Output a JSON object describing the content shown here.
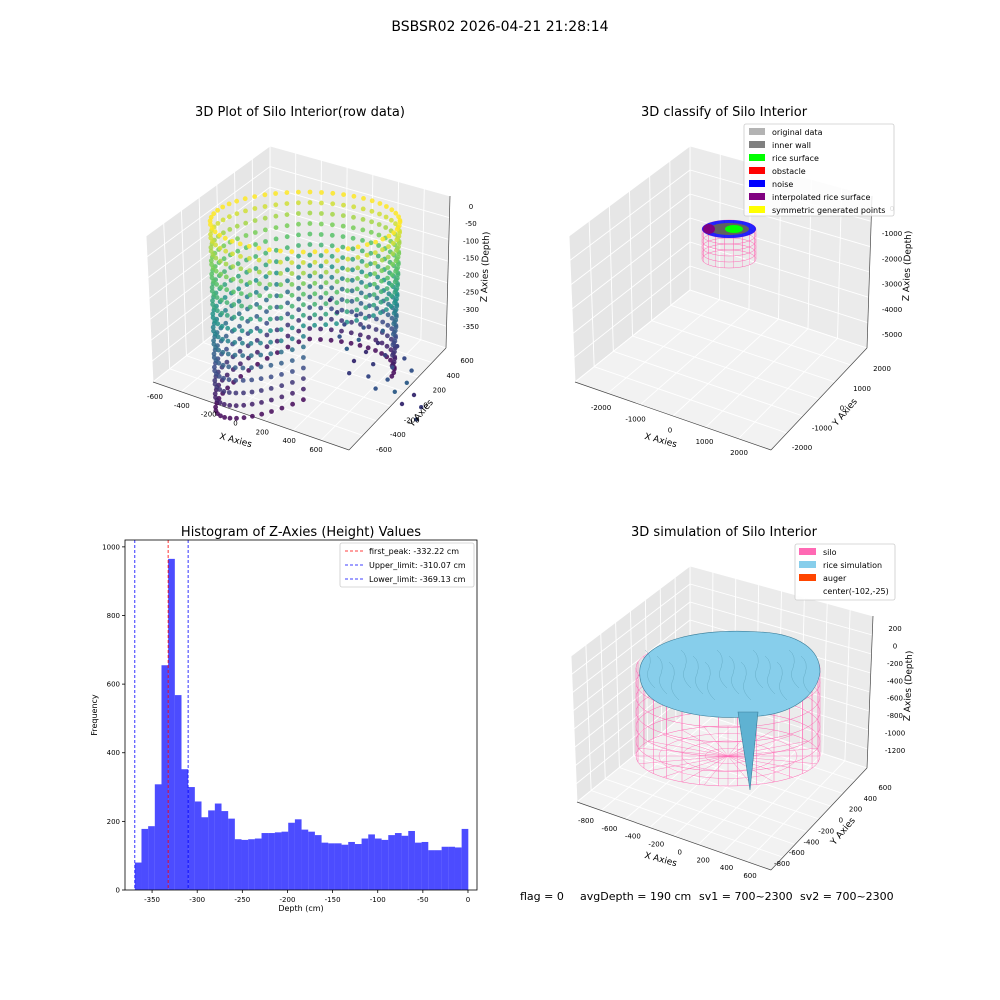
{
  "suptitle": "BSBSR02 2026-04-21 21:28:14",
  "status_line": {
    "flag": "flag = 0",
    "avg": "avgDepth = 190 cm",
    "sv1": "sv1 = 700~2300",
    "sv2": "sv2 = 700~2300"
  },
  "chart_data": [
    {
      "type": "scatter",
      "title": "3D Plot of Silo Interior(row data)",
      "xlabel": "X Axies",
      "ylabel": "Y Axies",
      "zlabel": "Z Axies (Depth)",
      "x_ticks": [
        "-600",
        "-400",
        "-200",
        "0",
        "200",
        "400",
        "600"
      ],
      "y_ticks": [
        "-600",
        "-400",
        "-200",
        "0",
        "200",
        "400",
        "600"
      ],
      "z_ticks": [
        "0",
        "-50",
        "-100",
        "-150",
        "-200",
        "-250",
        "-300",
        "-350"
      ],
      "xlim": [
        -650,
        650
      ],
      "ylim": [
        -650,
        650
      ],
      "zlim": [
        -380,
        10
      ],
      "colormap": "viridis",
      "shape": "cylindrical shell of points, radius about 600, depth 0 to -370",
      "grid": true
    },
    {
      "type": "scatter",
      "title": "3D classify of Silo Interior",
      "xlabel": "X Axies",
      "ylabel": "Y Axies",
      "zlabel": "Z Axies (Depth)",
      "x_ticks": [
        "-2000",
        "-1000",
        "0",
        "1000",
        "2000"
      ],
      "y_ticks": [
        "-2000",
        "-1000",
        "0",
        "1000",
        "2000"
      ],
      "z_ticks": [
        "0",
        "-1000",
        "-2000",
        "-3000",
        "-4000",
        "-5000"
      ],
      "xlim": [
        -2500,
        2500
      ],
      "ylim": [
        -2500,
        2500
      ],
      "zlim": [
        -5200,
        200
      ],
      "grid": true,
      "legend": {
        "position": "upper-right",
        "entries": [
          {
            "label": "original data",
            "color": "#b3b3b3"
          },
          {
            "label": "inner wall",
            "color": "#808080"
          },
          {
            "label": "rice surface",
            "color": "#00ff00"
          },
          {
            "label": "obstacle",
            "color": "#ff0000"
          },
          {
            "label": "noise",
            "color": "#0000ff"
          },
          {
            "label": "interpolated rice surface",
            "color": "#800080"
          },
          {
            "label": "symmetric generated points",
            "color": "#ffff00"
          }
        ]
      }
    },
    {
      "type": "bar",
      "title": "Histogram of Z-Axies (Height) Values",
      "xlabel": "Depth (cm)",
      "ylabel": "Frequency",
      "xlim": [
        -380,
        10
      ],
      "ylim": [
        0,
        1020
      ],
      "x_ticks": [
        -350,
        -300,
        -250,
        -200,
        -150,
        -100,
        -50,
        0
      ],
      "y_ticks": [
        0,
        200,
        400,
        600,
        800,
        1000
      ],
      "bin_start": -369.13,
      "bin_width": 7.39,
      "values": [
        80,
        178,
        186,
        308,
        655,
        965,
        568,
        352,
        300,
        258,
        212,
        232,
        252,
        230,
        208,
        148,
        146,
        148,
        150,
        166,
        166,
        168,
        170,
        196,
        206,
        176,
        170,
        160,
        138,
        136,
        136,
        132,
        140,
        134,
        150,
        162,
        150,
        146,
        160,
        166,
        158,
        172,
        138,
        140,
        116,
        116,
        126,
        126,
        124,
        178
      ],
      "bar_color": "#0000ff",
      "lines": [
        {
          "label": "first_peak: -332.22 cm",
          "x": -332.22,
          "color": "#ff0000"
        },
        {
          "label": "Upper_limit: -310.07 cm",
          "x": -310.07,
          "color": "#0000ff"
        },
        {
          "label": "Lower_limit: -369.13 cm",
          "x": -369.13,
          "color": "#0000ff"
        }
      ],
      "legend_position": "upper-right"
    },
    {
      "type": "area",
      "title": "3D simulation of Silo Interior",
      "xlabel": "X Axies",
      "ylabel": "Y Axies",
      "zlabel": "Z Axies (Depth)",
      "x_ticks": [
        "-800",
        "-600",
        "-400",
        "-200",
        "0",
        "200",
        "400",
        "600"
      ],
      "y_ticks": [
        "-800",
        "-600",
        "-400",
        "-200",
        "0",
        "200",
        "400",
        "600"
      ],
      "z_ticks": [
        "200",
        "0",
        "-200",
        "-400",
        "-600",
        "-800",
        "-1000",
        "-1200"
      ],
      "xlim": [
        -900,
        700
      ],
      "ylim": [
        -900,
        700
      ],
      "zlim": [
        -1300,
        300
      ],
      "grid": true,
      "legend": {
        "position": "upper-right",
        "entries": [
          {
            "label": "silo",
            "color": "#ff69b4"
          },
          {
            "label": "rice simulation",
            "color": "#87ceeb"
          },
          {
            "label": "auger",
            "color": "#ff4500"
          },
          {
            "label": "center(-102,-25)",
            "color": ""
          }
        ]
      }
    }
  ]
}
